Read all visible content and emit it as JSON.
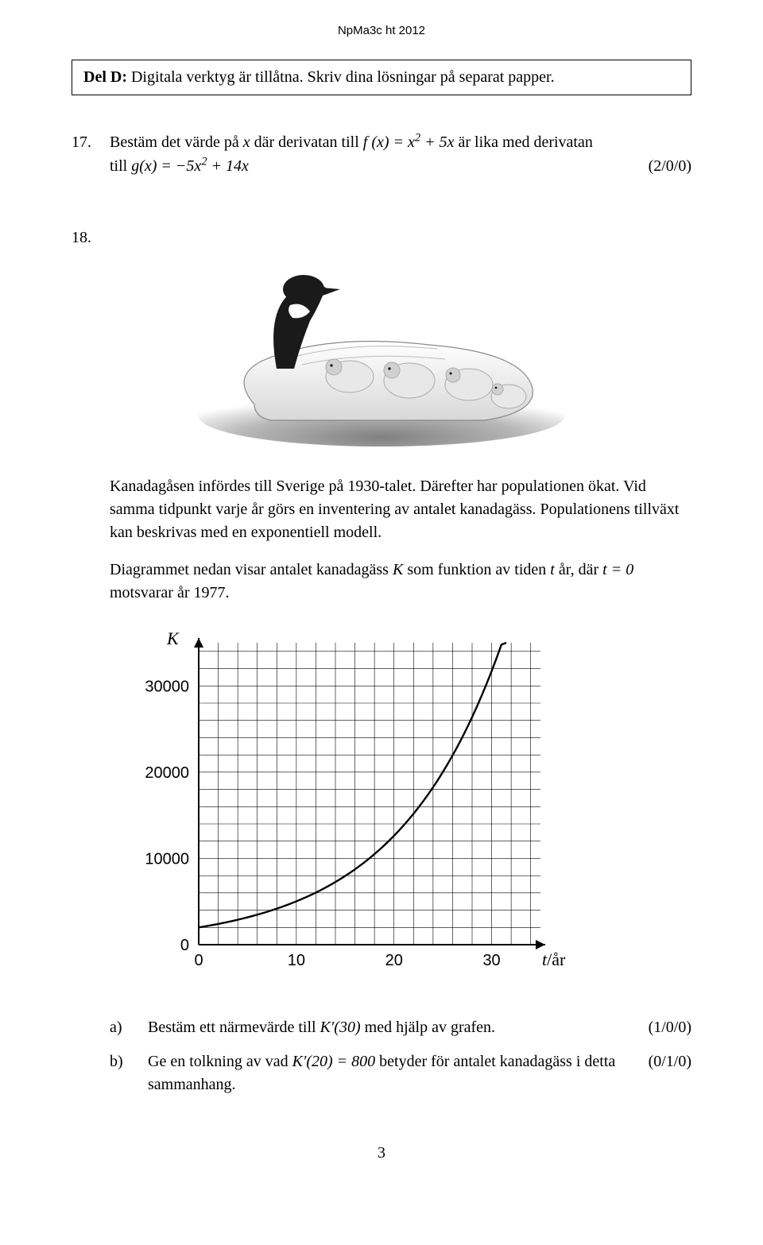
{
  "header": "NpMa3c ht 2012",
  "section": {
    "bold": "Del D:",
    "text": " Digitala verktyg är tillåtna. Skriv dina lösningar på separat papper."
  },
  "p17": {
    "num": "17.",
    "line1a": "Bestäm det värde på ",
    "line1b": " där derivatan till ",
    "line1c": " är lika med derivatan",
    "fx": "f (x) = x",
    "fx_sup": "2",
    "fx_tail": " + 5x",
    "line2a": "till  ",
    "gx": "g(x) = −5x",
    "gx_sup": "2",
    "gx_tail": " + 14x",
    "points": "(2/0/0)"
  },
  "p18": {
    "num": "18.",
    "para1": "Kanadagåsen infördes till Sverige på 1930-talet. Därefter har populationen ökat. Vid samma tidpunkt varje år görs en inventering av antalet kanadagäss. Populationens tillväxt kan beskrivas med en exponentiell modell.",
    "para2a": "Diagrammet nedan visar antalet kanadagäss ",
    "para2b": " som funktion av tiden ",
    "para2c": " år, där ",
    "para2d": " motsvarar år 1977.",
    "K": "K",
    "t": "t",
    "t0": "t = 0",
    "chart": {
      "y_label": "K",
      "x_label": "t",
      "x_unit": "/år",
      "x_ticks": [
        0,
        10,
        20,
        30
      ],
      "y_ticks": [
        0,
        10000,
        20000,
        30000
      ],
      "x_max": 35,
      "y_max": 35000,
      "bg": "#ffffff",
      "grid": "#000000",
      "curve": "#000000"
    },
    "a": {
      "label": "a)",
      "text1": "Bestäm ett närmevärde till  ",
      "kexpr": "K′(30)",
      "text2": "  med hjälp av grafen.",
      "points": "(1/0/0)"
    },
    "b": {
      "label": "b)",
      "text1": "Ge en tolkning av vad  ",
      "kexpr": "K′(20) = 800",
      "text2": "  betyder för antalet kanadagäss i detta sammanhang.",
      "points": "(0/1/0)"
    }
  },
  "footer": "3"
}
